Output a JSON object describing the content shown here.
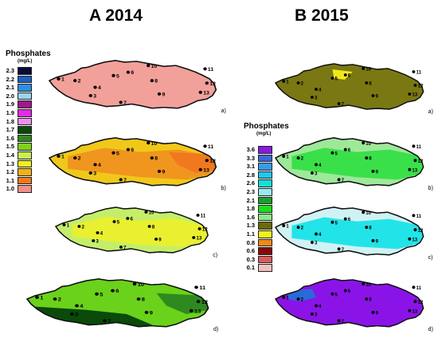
{
  "panels": {
    "left_title": "A 2014",
    "right_title": "B 2015"
  },
  "legend_2014": {
    "title": "Phosphates",
    "unit": "(mg/L)",
    "items": [
      {
        "label": "2.3",
        "color": "#0b0b3a"
      },
      {
        "label": "2.2",
        "color": "#1f5fbf"
      },
      {
        "label": "2.1",
        "color": "#2a8fe0"
      },
      {
        "label": "2.0",
        "color": "#9ad4f0"
      },
      {
        "label": "1.9",
        "color": "#a0188a"
      },
      {
        "label": "1.9",
        "color": "#e22be6"
      },
      {
        "label": "1.8",
        "color": "#f090f0"
      },
      {
        "label": "1.7",
        "color": "#0b4a0b"
      },
      {
        "label": "1.6",
        "color": "#2e8a1e"
      },
      {
        "label": "1.5",
        "color": "#7ed21a"
      },
      {
        "label": "1.4",
        "color": "#c8ef52"
      },
      {
        "label": "1.3",
        "color": "#f0f01a"
      },
      {
        "label": "1.2",
        "color": "#f0b218"
      },
      {
        "label": "1.1",
        "color": "#f07a18"
      },
      {
        "label": "1.0",
        "color": "#f08f8a"
      }
    ]
  },
  "legend_2015": {
    "title": "Phosphates",
    "unit": "(mg/L)",
    "items": [
      {
        "label": "3.6",
        "color": "#8a1ae0"
      },
      {
        "label": "3.3",
        "color": "#3a6ad8"
      },
      {
        "label": "3.1",
        "color": "#3a9ae8"
      },
      {
        "label": "2.8",
        "color": "#20c8f0"
      },
      {
        "label": "2.6",
        "color": "#14e0d8"
      },
      {
        "label": "2.3",
        "color": "#9ae8f0"
      },
      {
        "label": "2.1",
        "color": "#1aa02a"
      },
      {
        "label": "1.8",
        "color": "#1ae01a"
      },
      {
        "label": "1.6",
        "color": "#8ae88a"
      },
      {
        "label": "1.3",
        "color": "#6a6a0a"
      },
      {
        "label": "1.1",
        "color": "#f0f01a"
      },
      {
        "label": "0.8",
        "color": "#f08a18"
      },
      {
        "label": "0.6",
        "color": "#8a0a0a"
      },
      {
        "label": "0.3",
        "color": "#e05a5a"
      },
      {
        "label": "0.1",
        "color": "#f0c0c0"
      }
    ]
  },
  "maps": [
    {
      "panel": "A",
      "tag": "a)",
      "base": "#f2a09a",
      "zones": []
    },
    {
      "panel": "A",
      "tag": "b)",
      "base": "#f0c81a",
      "zones": [
        {
          "color": "#f0961e"
        },
        {
          "color": "#f0781e"
        }
      ]
    },
    {
      "panel": "A",
      "tag": "c)",
      "base": "#c4ee6a",
      "zones": [
        {
          "color": "#e8f030"
        }
      ]
    },
    {
      "panel": "A",
      "tag": "d)",
      "base": "#6ad21a",
      "zones": [
        {
          "color": "#0a4a0a"
        },
        {
          "color": "#2e8a1e"
        }
      ]
    },
    {
      "panel": "B",
      "tag": "a)",
      "base": "#7a7812",
      "zones": [
        {
          "color": "#f0e81a"
        }
      ]
    },
    {
      "panel": "B",
      "tag": "b)",
      "base": "#9ee89a",
      "zones": [
        {
          "color": "#3ae04a"
        }
      ]
    },
    {
      "panel": "B",
      "tag": "c)",
      "base": "#d0f2f4",
      "zones": [
        {
          "color": "#22e4e8"
        }
      ]
    },
    {
      "panel": "B",
      "tag": "d)",
      "base": "#8a14e8",
      "zones": [
        {
          "color": "#2a6ad8"
        }
      ]
    }
  ],
  "stations": [
    "1",
    "2",
    "3",
    "4",
    "5",
    "6",
    "7",
    "8",
    "9",
    "10",
    "11",
    "12",
    "13"
  ]
}
